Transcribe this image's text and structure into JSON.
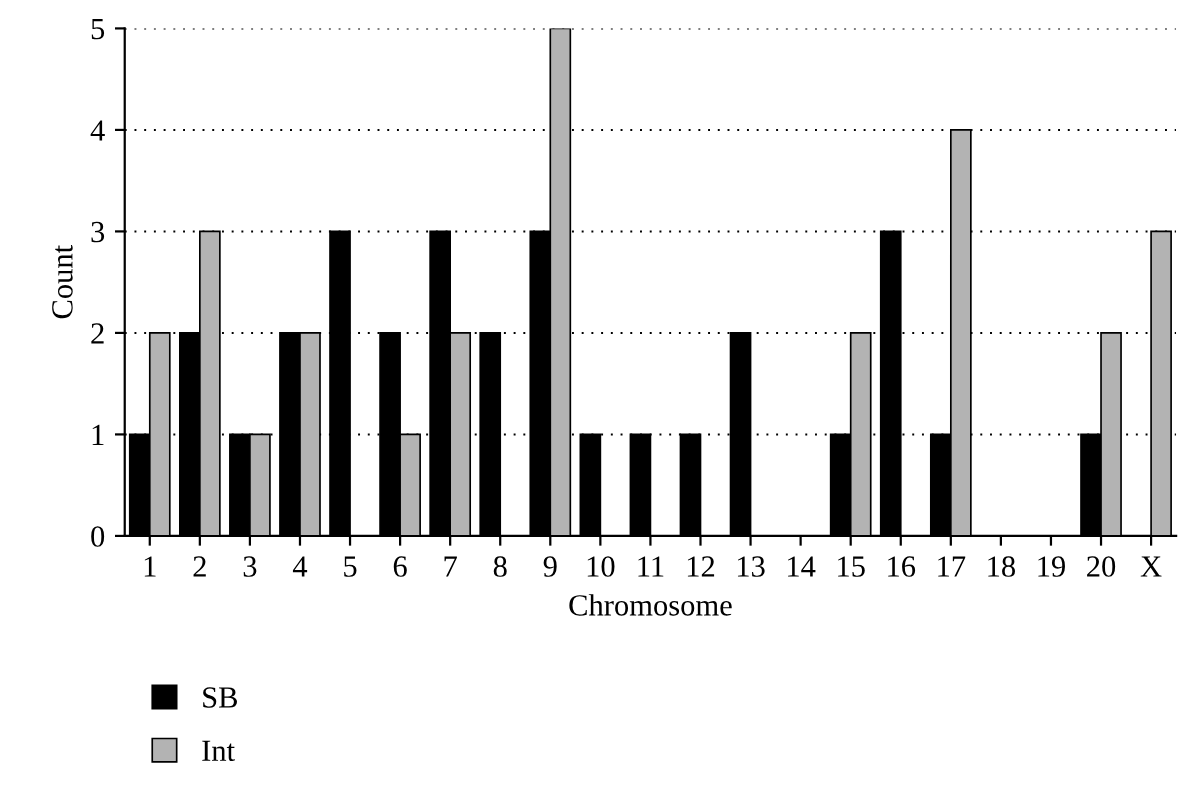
{
  "chart_data": {
    "type": "bar",
    "xlabel": "Chromosome",
    "ylabel": "Count",
    "categories": [
      "1",
      "2",
      "3",
      "4",
      "5",
      "6",
      "7",
      "8",
      "9",
      "10",
      "11",
      "12",
      "13",
      "14",
      "15",
      "16",
      "17",
      "18",
      "19",
      "20",
      "X"
    ],
    "series": [
      {
        "name": "SB",
        "color": "#000000",
        "values": [
          1,
          2,
          1,
          2,
          3,
          2,
          3,
          2,
          3,
          1,
          1,
          1,
          2,
          0,
          1,
          3,
          1,
          0,
          0,
          1,
          0
        ]
      },
      {
        "name": "Int",
        "color": "#b3b3b3",
        "values": [
          2,
          3,
          1,
          2,
          0,
          1,
          2,
          0,
          5,
          0,
          0,
          0,
          0,
          0,
          2,
          0,
          4,
          0,
          0,
          2,
          3
        ]
      }
    ],
    "ylim": [
      0,
      5
    ],
    "yticks": [
      0,
      1,
      2,
      3,
      4,
      5
    ],
    "grid": "y",
    "legend": "bottom"
  }
}
